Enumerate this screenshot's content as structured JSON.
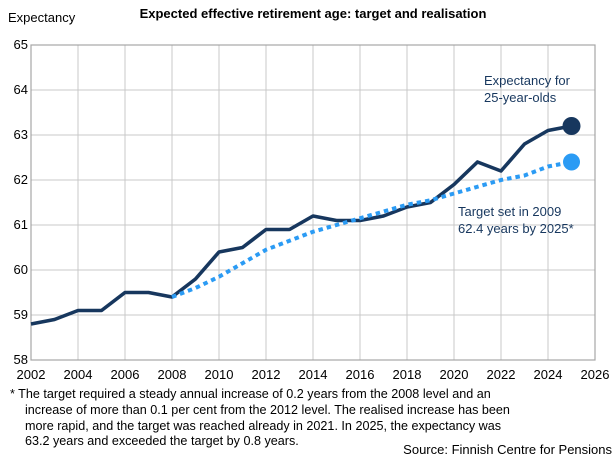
{
  "chart": {
    "title": "Expected effective retirement age: target and realisation",
    "y_axis_title": "Expectancy",
    "annotations": {
      "realised_line1": "Expectancy for",
      "realised_line2": "25-year-olds",
      "target_line1": "Target set in 2009",
      "target_line2": "62.4 years by 2025*"
    },
    "footnote_lines": [
      "* The target required a steady annual increase of 0.2 years from the 2008 level and an",
      "increase of more than 0.1 per cent from the 2012 level. The realised increase has been",
      "more rapid, and the target was reached already in 2021. In 2025, the expectancy was",
      "63.2 years and exceeded the target by 0.8 years."
    ],
    "source": "Source: Finnish Centre for Pensions"
  },
  "colors": {
    "navy": "#17375e",
    "light_blue": "#2b9bf4",
    "grid": "#c9c9c9",
    "border": "#a6a6a6"
  },
  "chart_data": {
    "type": "line",
    "title": "Expected effective retirement age: target and realisation",
    "xlabel": "",
    "ylabel": "Expectancy",
    "xlim": [
      2002,
      2026
    ],
    "ylim": [
      58,
      65
    ],
    "xticks": [
      2002,
      2004,
      2006,
      2008,
      2010,
      2012,
      2014,
      2016,
      2018,
      2020,
      2022,
      2024,
      2026
    ],
    "yticks": [
      65,
      64,
      63,
      62,
      61,
      60,
      59,
      58
    ],
    "grid": true,
    "legend_position": "none",
    "series": [
      {
        "id": "realised-line",
        "name": "Expectancy for 25-year-olds",
        "style": "solid",
        "color": "#17375e",
        "end_marker_radius": 9,
        "x": [
          2002,
          2003,
          2004,
          2005,
          2006,
          2007,
          2008,
          2009,
          2010,
          2011,
          2012,
          2013,
          2014,
          2015,
          2016,
          2017,
          2018,
          2019,
          2020,
          2021,
          2022,
          2023,
          2024,
          2025
        ],
        "values": [
          58.8,
          58.9,
          59.1,
          59.1,
          59.5,
          59.5,
          59.4,
          59.8,
          60.4,
          60.5,
          60.9,
          60.9,
          61.2,
          61.1,
          61.1,
          61.2,
          61.4,
          61.5,
          61.9,
          62.4,
          62.2,
          62.8,
          63.1,
          63.2
        ]
      },
      {
        "id": "target-line",
        "name": "Target set in 2009 (62.4 years by 2025)",
        "style": "dotted",
        "color": "#2b9bf4",
        "end_marker_radius": 8.5,
        "x": [
          2008,
          2009,
          2010,
          2011,
          2012,
          2013,
          2014,
          2015,
          2016,
          2017,
          2018,
          2019,
          2020,
          2021,
          2022,
          2023,
          2024,
          2025
        ],
        "values": [
          59.4,
          59.6,
          59.85,
          60.15,
          60.45,
          60.65,
          60.85,
          61.0,
          61.15,
          61.3,
          61.45,
          61.55,
          61.7,
          61.85,
          62.0,
          62.1,
          62.3,
          62.4
        ]
      }
    ]
  }
}
